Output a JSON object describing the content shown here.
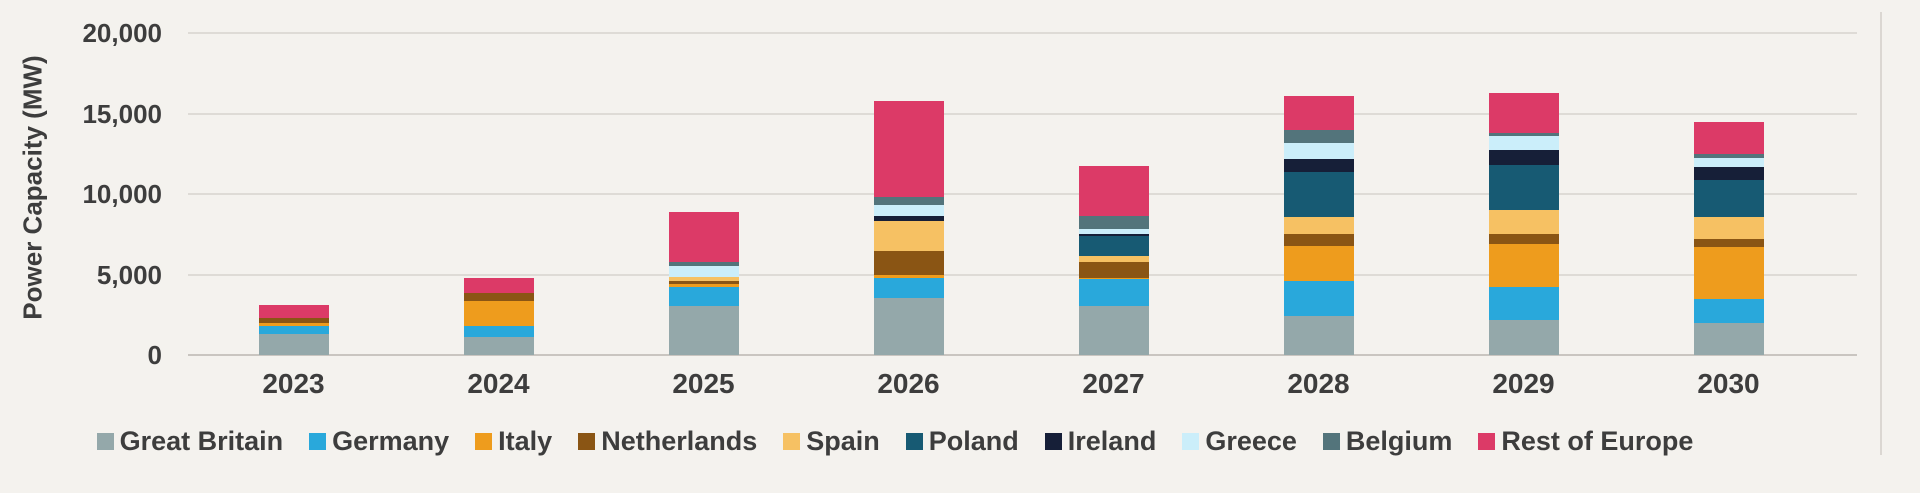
{
  "chart_data": {
    "type": "bar",
    "stacked": true,
    "title": "",
    "xlabel": "",
    "ylabel": "Power Capacity (MW)",
    "legend_position": "bottom",
    "grid": "horizontal",
    "categories": [
      "2023",
      "2024",
      "2025",
      "2026",
      "2027",
      "2028",
      "2029",
      "2030"
    ],
    "series": [
      {
        "name": "Great Britain",
        "color": "#94A8AA",
        "values": [
          1300,
          1150,
          3050,
          3550,
          3050,
          2400,
          2200,
          2000
        ]
      },
      {
        "name": "Germany",
        "color": "#29A8DB",
        "values": [
          480,
          650,
          1150,
          1250,
          1650,
          2200,
          2000,
          1450
        ]
      },
      {
        "name": "Italy",
        "color": "#EE9C1D",
        "values": [
          230,
          1550,
          200,
          170,
          100,
          2200,
          2700,
          3250
        ]
      },
      {
        "name": "Netherlands",
        "color": "#8A5514",
        "values": [
          290,
          500,
          200,
          1500,
          950,
          700,
          600,
          500
        ]
      },
      {
        "name": "Spain",
        "color": "#F6C163",
        "values": [
          0,
          0,
          270,
          1830,
          420,
          1050,
          1500,
          1350
        ]
      },
      {
        "name": "Poland",
        "color": "#175A73",
        "values": [
          0,
          0,
          0,
          0,
          1200,
          2800,
          2800,
          2300
        ]
      },
      {
        "name": "Ireland",
        "color": "#161F38",
        "values": [
          0,
          0,
          0,
          350,
          150,
          800,
          950,
          850
        ]
      },
      {
        "name": "Greece",
        "color": "#CBEEFA",
        "values": [
          0,
          0,
          690,
          700,
          300,
          1000,
          850,
          550
        ]
      },
      {
        "name": "Belgium",
        "color": "#53747B",
        "values": [
          0,
          0,
          250,
          450,
          830,
          850,
          200,
          250
        ]
      },
      {
        "name": "Rest of Europe",
        "color": "#DC3A67",
        "values": [
          800,
          950,
          3090,
          6000,
          3100,
          2100,
          2450,
          2000
        ]
      }
    ],
    "y_axis": {
      "min": 0,
      "max": 20000,
      "ticks": [
        {
          "label": "0",
          "value": 0
        },
        {
          "label": "5,000",
          "value": 5000
        },
        {
          "label": "10,000",
          "value": 10000
        },
        {
          "label": "15,000",
          "value": 15000
        },
        {
          "label": "20,000",
          "value": 20000
        }
      ]
    },
    "colors": {
      "background": "#F4F2EE",
      "grid": "#DEDBD6",
      "baseline": "#C9C5C0",
      "text": "#3D3D3D",
      "border": "#DBD7D2"
    }
  }
}
